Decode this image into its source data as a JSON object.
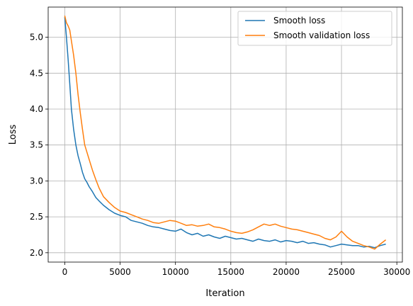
{
  "chart_data": {
    "type": "line",
    "xlabel": "Iteration",
    "ylabel": "Loss",
    "xlim": [
      -1500,
      30500
    ],
    "ylim": [
      1.87,
      5.42
    ],
    "xticks": [
      0,
      5000,
      10000,
      15000,
      20000,
      25000,
      30000
    ],
    "yticks": [
      2.0,
      2.5,
      3.0,
      3.5,
      4.0,
      4.5,
      5.0
    ],
    "ytick_labels": [
      "2.0",
      "2.5",
      "3.0",
      "3.5",
      "4.0",
      "4.5",
      "5.0"
    ],
    "grid": true,
    "legend_placement": "top-right",
    "series": [
      {
        "name": "Smooth loss",
        "color": "#1f77b4",
        "x": [
          0,
          150,
          300,
          450,
          600,
          800,
          1000,
          1200,
          1400,
          1600,
          1800,
          2000,
          2200,
          2500,
          2800,
          3100,
          3500,
          4000,
          4500,
          5000,
          5500,
          6000,
          6500,
          7000,
          7500,
          8000,
          8500,
          9000,
          9500,
          10000,
          10500,
          11000,
          11500,
          12000,
          12500,
          13000,
          13500,
          14000,
          14500,
          15000,
          15500,
          16000,
          16500,
          17000,
          17500,
          18000,
          18500,
          19000,
          19500,
          20000,
          20500,
          21000,
          21500,
          22000,
          22500,
          23000,
          23500,
          24000,
          24500,
          25000,
          25500,
          26000,
          26500,
          27000,
          27500,
          28000,
          28500,
          29000
        ],
        "y": [
          5.28,
          5.0,
          4.7,
          4.35,
          4.0,
          3.72,
          3.5,
          3.35,
          3.24,
          3.12,
          3.03,
          2.98,
          2.92,
          2.85,
          2.77,
          2.72,
          2.66,
          2.6,
          2.55,
          2.52,
          2.5,
          2.45,
          2.43,
          2.41,
          2.38,
          2.36,
          2.35,
          2.33,
          2.31,
          2.3,
          2.33,
          2.28,
          2.25,
          2.27,
          2.23,
          2.25,
          2.22,
          2.2,
          2.23,
          2.21,
          2.19,
          2.2,
          2.18,
          2.16,
          2.19,
          2.17,
          2.16,
          2.18,
          2.15,
          2.17,
          2.16,
          2.14,
          2.16,
          2.13,
          2.14,
          2.12,
          2.11,
          2.08,
          2.1,
          2.12,
          2.11,
          2.1,
          2.1,
          2.08,
          2.09,
          2.07,
          2.1,
          2.12
        ]
      },
      {
        "name": "Smooth validation loss",
        "color": "#ff7f0e",
        "x": [
          0,
          150,
          300,
          450,
          600,
          800,
          1000,
          1200,
          1400,
          1600,
          1800,
          2000,
          2200,
          2500,
          2800,
          3100,
          3500,
          4000,
          4500,
          5000,
          5500,
          6000,
          6500,
          7000,
          7500,
          8000,
          8500,
          9000,
          9500,
          10000,
          10500,
          11000,
          11500,
          12000,
          12500,
          13000,
          13500,
          14000,
          14500,
          15000,
          15500,
          16000,
          16500,
          17000,
          17500,
          18000,
          18500,
          19000,
          19500,
          20000,
          20500,
          21000,
          21500,
          22000,
          22500,
          23000,
          23500,
          24000,
          24500,
          25000,
          25500,
          26000,
          26500,
          27000,
          27500,
          28000,
          28500,
          29000
        ],
        "y": [
          5.3,
          5.2,
          5.16,
          5.1,
          4.95,
          4.75,
          4.5,
          4.2,
          3.95,
          3.72,
          3.5,
          3.4,
          3.3,
          3.15,
          3.02,
          2.9,
          2.78,
          2.7,
          2.63,
          2.58,
          2.56,
          2.53,
          2.5,
          2.47,
          2.45,
          2.42,
          2.41,
          2.43,
          2.45,
          2.44,
          2.41,
          2.38,
          2.39,
          2.37,
          2.38,
          2.4,
          2.36,
          2.35,
          2.33,
          2.3,
          2.28,
          2.27,
          2.29,
          2.32,
          2.36,
          2.4,
          2.38,
          2.4,
          2.37,
          2.35,
          2.33,
          2.32,
          2.3,
          2.28,
          2.26,
          2.24,
          2.2,
          2.18,
          2.22,
          2.3,
          2.22,
          2.16,
          2.13,
          2.1,
          2.08,
          2.05,
          2.12,
          2.18
        ]
      }
    ]
  }
}
